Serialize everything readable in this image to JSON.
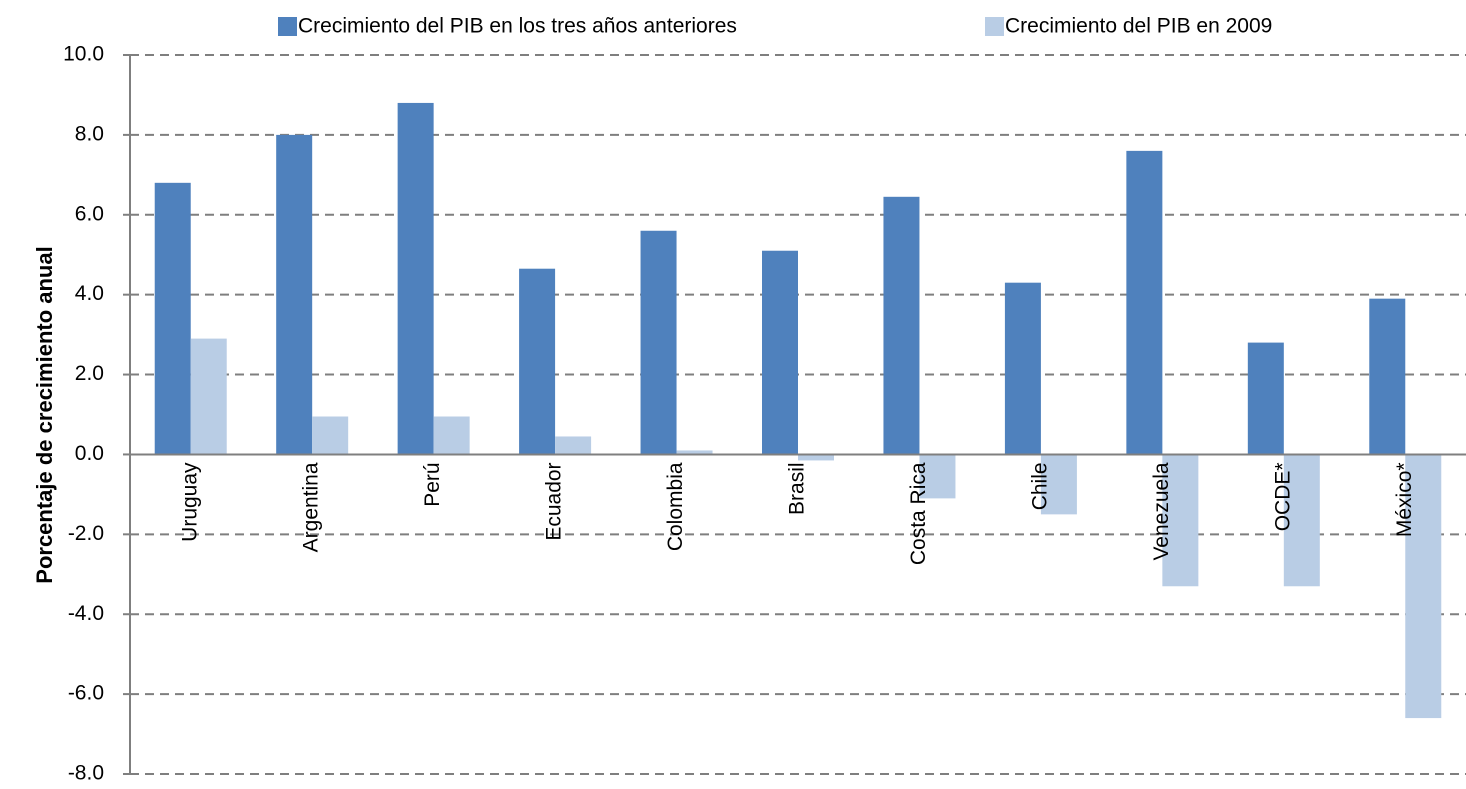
{
  "chart_data": {
    "type": "bar",
    "y_label": "Porcentaje de crecimiento anual",
    "categories": [
      "Uruguay",
      "Argentina",
      "Perú",
      "Ecuador",
      "Colombia",
      "Brasil",
      "Costa Rica",
      "Chile",
      "Venezuela",
      "OCDE*",
      "México*"
    ],
    "series": [
      {
        "name": "Crecimiento del PIB en los tres años anteriores",
        "color": "#4f81bd",
        "values": [
          6.8,
          8.0,
          8.8,
          4.65,
          5.6,
          5.1,
          6.45,
          4.3,
          7.6,
          2.8,
          3.9
        ]
      },
      {
        "name": "Crecimiento del PIB en 2009",
        "color": "#b9cde5",
        "values": [
          2.9,
          0.95,
          0.95,
          0.45,
          0.1,
          -0.15,
          -1.1,
          -1.5,
          -3.3,
          -3.3,
          -6.6
        ]
      }
    ],
    "ylim": [
      -8,
      10
    ],
    "yticks": [
      {
        "value": -8,
        "label": "-8.0"
      },
      {
        "value": -6,
        "label": "-6.0"
      },
      {
        "value": -4,
        "label": "-4.0"
      },
      {
        "value": -2,
        "label": "-2.0"
      },
      {
        "value": 0,
        "label": "0.0"
      },
      {
        "value": 2,
        "label": "2.0"
      },
      {
        "value": 4,
        "label": "4.0"
      },
      {
        "value": 6,
        "label": "6.0"
      },
      {
        "value": 8,
        "label": "8.0"
      },
      {
        "value": 10,
        "label": "10.0"
      }
    ],
    "grid": true
  }
}
